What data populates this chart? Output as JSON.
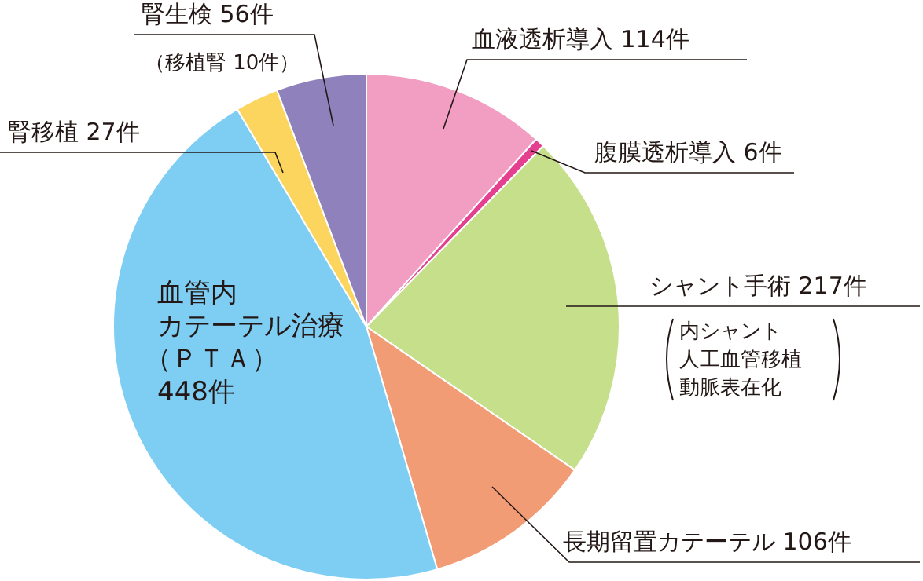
{
  "chart_data": {
    "type": "pie",
    "categories": [
      "血液透析導入",
      "腹膜透析導入",
      "シャント手術",
      "長期留置カテーテル",
      "血管内カテーテル治療（ＰＴＡ）",
      "腎移植",
      "腎生検"
    ],
    "values": [
      114,
      6,
      217,
      106,
      448,
      27,
      56
    ],
    "value_labels": [
      "114件",
      "6件",
      "217件",
      "106件",
      "448件",
      "27件",
      "56件"
    ],
    "colors": [
      "#f19ec2",
      "#e4408f",
      "#c5df8a",
      "#f29c76",
      "#7ecef4",
      "#fcd55f",
      "#8f82bc"
    ],
    "annotations": [
      "（移植腎 10件）",
      "内シャント人工血管移植動脈表在化"
    ]
  }
}
